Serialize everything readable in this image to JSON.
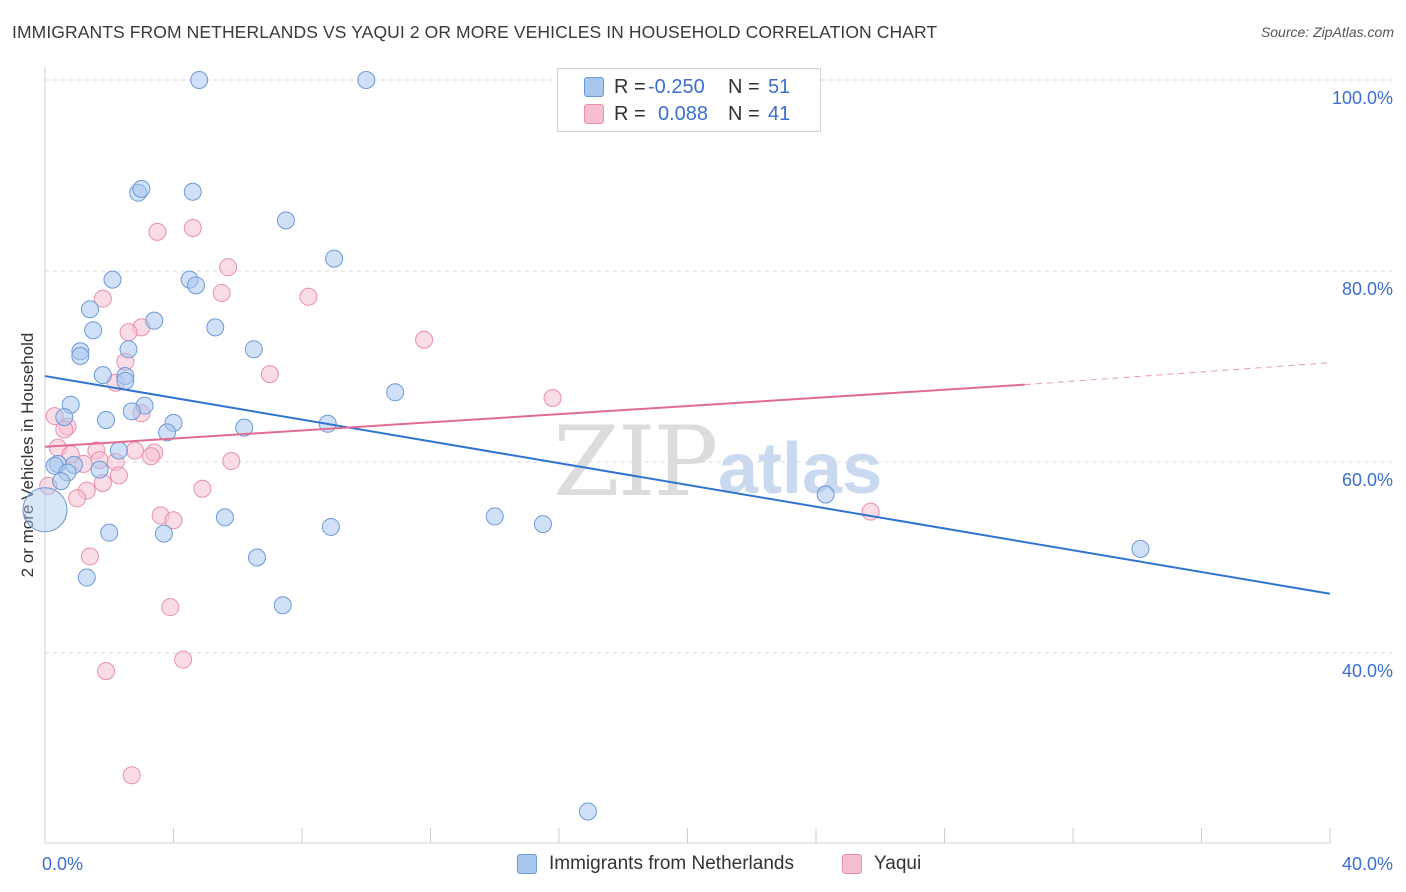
{
  "title": "IMMIGRANTS FROM NETHERLANDS VS YAQUI 2 OR MORE VEHICLES IN HOUSEHOLD CORRELATION CHART",
  "source": "Source: ZipAtlas.com",
  "watermark": {
    "zip": "ZIP",
    "atlas": "atlas"
  },
  "legend": {
    "rows": [
      {
        "r_label": "R =",
        "r_value": "-0.250",
        "n_label": "N =",
        "n_value": "51"
      },
      {
        "r_label": "R =",
        "r_value": "0.088",
        "n_label": "N =",
        "n_value": "41"
      }
    ]
  },
  "bottom_legend": [
    "Immigrants from Netherlands",
    "Yaqui"
  ],
  "colors": {
    "blue_fill": "#a9c7ee",
    "blue_stroke": "#6c9ad8",
    "blue_line": "#2f74d0",
    "pink_fill": "#f6bfd1",
    "pink_stroke": "#e98fae",
    "pink_line": "#e06c94",
    "axis_label": "#3a6fd0",
    "grid": "#d9d9d9"
  },
  "chart_data": {
    "type": "scatter",
    "title": "IMMIGRANTS FROM NETHERLANDS VS YAQUI 2 OR MORE VEHICLES IN HOUSEHOLD CORRELATION CHART",
    "xlabel": "",
    "ylabel": "2 or more Vehicles in Household",
    "xlim": [
      0,
      40
    ],
    "ylim": [
      20,
      102
    ],
    "x_tick_labels": [
      "0.0%",
      "40.0%"
    ],
    "y_ticks": [
      40,
      60,
      80,
      100
    ],
    "y_tick_labels": [
      "40.0%",
      "60.0%",
      "80.0%",
      "100.0%"
    ],
    "grid": true,
    "series": [
      {
        "name": "Immigrants from Netherlands",
        "color": "#a9c7ee",
        "trend": {
          "x": [
            0,
            40
          ],
          "y": [
            69.0,
            46.2
          ]
        },
        "points": [
          {
            "x": 4.8,
            "y": 100.0
          },
          {
            "x": 10.0,
            "y": 100.0
          },
          {
            "x": 2.9,
            "y": 88.2
          },
          {
            "x": 3.0,
            "y": 88.6
          },
          {
            "x": 4.6,
            "y": 88.3
          },
          {
            "x": 7.5,
            "y": 85.3
          },
          {
            "x": 9.0,
            "y": 81.3
          },
          {
            "x": 2.1,
            "y": 79.1
          },
          {
            "x": 4.5,
            "y": 79.1
          },
          {
            "x": 4.7,
            "y": 78.5
          },
          {
            "x": 1.4,
            "y": 76.0
          },
          {
            "x": 3.4,
            "y": 74.8
          },
          {
            "x": 5.3,
            "y": 74.1
          },
          {
            "x": 1.5,
            "y": 73.8
          },
          {
            "x": 1.1,
            "y": 71.6
          },
          {
            "x": 2.6,
            "y": 71.8
          },
          {
            "x": 6.5,
            "y": 71.8
          },
          {
            "x": 1.1,
            "y": 71.1
          },
          {
            "x": 1.8,
            "y": 69.1
          },
          {
            "x": 2.5,
            "y": 69.0
          },
          {
            "x": 2.5,
            "y": 68.5
          },
          {
            "x": 10.9,
            "y": 67.3
          },
          {
            "x": 0.8,
            "y": 66.0
          },
          {
            "x": 3.1,
            "y": 65.9
          },
          {
            "x": 2.7,
            "y": 65.3
          },
          {
            "x": 0.6,
            "y": 64.7
          },
          {
            "x": 1.9,
            "y": 64.4
          },
          {
            "x": 4.0,
            "y": 64.1
          },
          {
            "x": 8.8,
            "y": 64.0
          },
          {
            "x": 6.2,
            "y": 63.6
          },
          {
            "x": 3.8,
            "y": 63.1
          },
          {
            "x": 2.3,
            "y": 61.2
          },
          {
            "x": 0.4,
            "y": 59.8
          },
          {
            "x": 0.3,
            "y": 59.6
          },
          {
            "x": 0.9,
            "y": 59.7
          },
          {
            "x": 1.7,
            "y": 59.2
          },
          {
            "x": 0.7,
            "y": 58.9
          },
          {
            "x": 0.5,
            "y": 58.0
          },
          {
            "x": 24.3,
            "y": 56.6
          },
          {
            "x": 14.0,
            "y": 54.3
          },
          {
            "x": 5.6,
            "y": 54.2
          },
          {
            "x": 15.5,
            "y": 53.5
          },
          {
            "x": 8.9,
            "y": 53.2
          },
          {
            "x": 2.0,
            "y": 52.6
          },
          {
            "x": 3.7,
            "y": 52.5
          },
          {
            "x": 34.1,
            "y": 50.9
          },
          {
            "x": 6.6,
            "y": 50.0
          },
          {
            "x": 1.3,
            "y": 47.9
          },
          {
            "x": 7.4,
            "y": 45.0
          },
          {
            "x": 16.9,
            "y": 23.4
          },
          {
            "x": 0.0,
            "y": 55.0,
            "big": true
          }
        ]
      },
      {
        "name": "Yaqui",
        "color": "#f6bfd1",
        "trend": {
          "x": [
            0,
            30.5
          ],
          "y": [
            61.6,
            68.1
          ]
        },
        "trend_dashed": {
          "x": [
            30.5,
            40
          ],
          "y": [
            68.1,
            70.4
          ]
        },
        "points": [
          {
            "x": 3.5,
            "y": 84.1
          },
          {
            "x": 4.6,
            "y": 84.5
          },
          {
            "x": 5.7,
            "y": 80.4
          },
          {
            "x": 5.5,
            "y": 77.7
          },
          {
            "x": 8.2,
            "y": 77.3
          },
          {
            "x": 1.8,
            "y": 77.1
          },
          {
            "x": 3.0,
            "y": 74.1
          },
          {
            "x": 2.6,
            "y": 73.6
          },
          {
            "x": 11.8,
            "y": 72.8
          },
          {
            "x": 2.5,
            "y": 70.5
          },
          {
            "x": 7.0,
            "y": 69.2
          },
          {
            "x": 2.2,
            "y": 68.3
          },
          {
            "x": 15.8,
            "y": 66.7
          },
          {
            "x": 3.0,
            "y": 65.1
          },
          {
            "x": 0.3,
            "y": 64.8
          },
          {
            "x": 0.7,
            "y": 63.7
          },
          {
            "x": 0.6,
            "y": 63.4
          },
          {
            "x": 0.4,
            "y": 61.5
          },
          {
            "x": 1.6,
            "y": 61.2
          },
          {
            "x": 3.4,
            "y": 61.0
          },
          {
            "x": 2.8,
            "y": 61.2
          },
          {
            "x": 3.3,
            "y": 60.6
          },
          {
            "x": 0.8,
            "y": 60.8
          },
          {
            "x": 1.7,
            "y": 60.2
          },
          {
            "x": 2.2,
            "y": 60.0
          },
          {
            "x": 5.8,
            "y": 60.1
          },
          {
            "x": 1.2,
            "y": 59.8
          },
          {
            "x": 2.3,
            "y": 58.6
          },
          {
            "x": 1.8,
            "y": 57.8
          },
          {
            "x": 1.3,
            "y": 57.0
          },
          {
            "x": 4.9,
            "y": 57.2
          },
          {
            "x": 1.0,
            "y": 56.2
          },
          {
            "x": 25.7,
            "y": 54.8
          },
          {
            "x": 3.6,
            "y": 54.4
          },
          {
            "x": 4.0,
            "y": 53.9
          },
          {
            "x": 1.4,
            "y": 50.1
          },
          {
            "x": 3.9,
            "y": 44.8
          },
          {
            "x": 4.3,
            "y": 39.3
          },
          {
            "x": 1.9,
            "y": 38.1
          },
          {
            "x": 2.7,
            "y": 27.2
          },
          {
            "x": 0.1,
            "y": 57.5
          }
        ]
      }
    ]
  }
}
